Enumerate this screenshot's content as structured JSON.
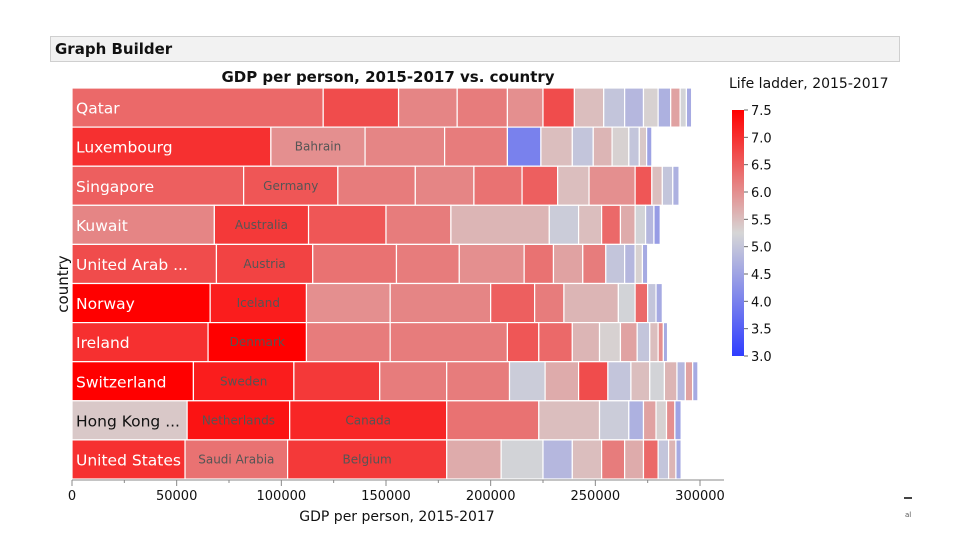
{
  "app": {
    "title": "Graph Builder"
  },
  "corner_note": "al",
  "chart_data": {
    "type": "bar",
    "subtype": "stacked-horizontal-treemap",
    "title": "GDP per person, 2015-2017 vs. country",
    "xlabel": "GDP per person, 2015-2017",
    "ylabel": "country",
    "xlim": [
      0,
      300000
    ],
    "xticks": [
      0,
      50000,
      100000,
      150000,
      200000,
      250000,
      300000
    ],
    "xtick_labels": [
      "0",
      "50000",
      "100000",
      "150000",
      "200000",
      "250000",
      "300000"
    ],
    "legend": {
      "title": "Life ladder, 2015-2017",
      "position": "right",
      "min": 3.0,
      "max": 7.5,
      "ticks": [
        7.5,
        7.0,
        6.5,
        6.0,
        5.5,
        5.0,
        4.5,
        4.0,
        3.5,
        3.0
      ],
      "tick_labels": [
        "7.5",
        "7.0",
        "6.5",
        "6.0",
        "5.5",
        "5.0",
        "4.5",
        "4.0",
        "3.5",
        "3.0"
      ],
      "colors": {
        "low": "#2f3dff",
        "mid": "#d6d6d6",
        "high": "#ff0000"
      }
    },
    "rows": [
      {
        "label": "Qatar",
        "segments": [
          {
            "value": 120000,
            "ladder": 6.4
          },
          {
            "value": 36000,
            "ladder": 6.7
          },
          {
            "value": 28000,
            "ladder": 6.1
          },
          {
            "value": 24000,
            "ladder": 6.2
          },
          {
            "value": 17000,
            "ladder": 6.0
          },
          {
            "value": 15000,
            "ladder": 6.7
          },
          {
            "value": 14000,
            "ladder": 5.5
          },
          {
            "value": 10000,
            "ladder": 5.0
          },
          {
            "value": 9000,
            "ladder": 4.8
          },
          {
            "value": 7000,
            "ladder": 5.3
          },
          {
            "value": 6000,
            "ladder": 4.7
          },
          {
            "value": 4500,
            "ladder": 5.8
          },
          {
            "value": 3000,
            "ladder": 5.2
          },
          {
            "value": 2500,
            "ladder": 4.6
          }
        ]
      },
      {
        "label": "Luxembourg",
        "second": "Bahrain",
        "segments": [
          {
            "value": 95000,
            "ladder": 7.0
          },
          {
            "value": 45000,
            "ladder": 6.0
          },
          {
            "value": 38000,
            "ladder": 6.1
          },
          {
            "value": 30000,
            "ladder": 6.2
          },
          {
            "value": 16000,
            "ladder": 4.0
          },
          {
            "value": 15000,
            "ladder": 5.5
          },
          {
            "value": 10000,
            "ladder": 5.0
          },
          {
            "value": 9000,
            "ladder": 5.6
          },
          {
            "value": 8000,
            "ladder": 5.3
          },
          {
            "value": 5000,
            "ladder": 5.0
          },
          {
            "value": 3500,
            "ladder": 5.4
          },
          {
            "value": 2500,
            "ladder": 4.5
          }
        ]
      },
      {
        "label": "Singapore",
        "second": "Germany",
        "segments": [
          {
            "value": 82000,
            "ladder": 6.5
          },
          {
            "value": 45000,
            "ladder": 6.6
          },
          {
            "value": 37000,
            "ladder": 6.2
          },
          {
            "value": 28000,
            "ladder": 6.1
          },
          {
            "value": 23000,
            "ladder": 6.3
          },
          {
            "value": 17000,
            "ladder": 6.5
          },
          {
            "value": 15000,
            "ladder": 5.5
          },
          {
            "value": 22000,
            "ladder": 6.0
          },
          {
            "value": 8000,
            "ladder": 6.6
          },
          {
            "value": 5000,
            "ladder": 5.5
          },
          {
            "value": 5000,
            "ladder": 5.0
          },
          {
            "value": 3000,
            "ladder": 4.7
          }
        ]
      },
      {
        "label": "Kuwait",
        "second": "Australia",
        "segments": [
          {
            "value": 68000,
            "ladder": 6.1
          },
          {
            "value": 45000,
            "ladder": 6.9
          },
          {
            "value": 37000,
            "ladder": 6.6
          },
          {
            "value": 31000,
            "ladder": 6.2
          },
          {
            "value": 47000,
            "ladder": 5.6
          },
          {
            "value": 14000,
            "ladder": 5.1
          },
          {
            "value": 11000,
            "ladder": 5.5
          },
          {
            "value": 9000,
            "ladder": 6.4
          },
          {
            "value": 7000,
            "ladder": 5.7
          },
          {
            "value": 5000,
            "ladder": 5.2
          },
          {
            "value": 4000,
            "ladder": 4.8
          },
          {
            "value": 3000,
            "ladder": 4.4
          }
        ]
      },
      {
        "label": "United Arab ...",
        "second": "Austria",
        "segments": [
          {
            "value": 69000,
            "ladder": 6.7
          },
          {
            "value": 46000,
            "ladder": 6.8
          },
          {
            "value": 40000,
            "ladder": 6.3
          },
          {
            "value": 30000,
            "ladder": 6.2
          },
          {
            "value": 31000,
            "ladder": 6.0
          },
          {
            "value": 14000,
            "ladder": 6.3
          },
          {
            "value": 14000,
            "ladder": 5.8
          },
          {
            "value": 11000,
            "ladder": 6.2
          },
          {
            "value": 9000,
            "ladder": 5.0
          },
          {
            "value": 5000,
            "ladder": 4.8
          },
          {
            "value": 3500,
            "ladder": 5.3
          },
          {
            "value": 2500,
            "ladder": 4.6
          }
        ]
      },
      {
        "label": "Norway",
        "second": "Iceland",
        "segments": [
          {
            "value": 66000,
            "ladder": 7.5
          },
          {
            "value": 46000,
            "ladder": 7.2
          },
          {
            "value": 40000,
            "ladder": 6.0
          },
          {
            "value": 48000,
            "ladder": 6.1
          },
          {
            "value": 21000,
            "ladder": 6.5
          },
          {
            "value": 14000,
            "ladder": 6.2
          },
          {
            "value": 26000,
            "ladder": 5.6
          },
          {
            "value": 8000,
            "ladder": 5.2
          },
          {
            "value": 6000,
            "ladder": 6.4
          },
          {
            "value": 4000,
            "ladder": 5.0
          },
          {
            "value": 3000,
            "ladder": 4.6
          }
        ]
      },
      {
        "label": "Ireland",
        "second": "Denmark",
        "segments": [
          {
            "value": 65000,
            "ladder": 7.0
          },
          {
            "value": 47000,
            "ladder": 7.5
          },
          {
            "value": 40000,
            "ladder": 6.2
          },
          {
            "value": 56000,
            "ladder": 6.2
          },
          {
            "value": 15000,
            "ladder": 6.6
          },
          {
            "value": 16000,
            "ladder": 6.4
          },
          {
            "value": 13000,
            "ladder": 5.6
          },
          {
            "value": 10000,
            "ladder": 5.3
          },
          {
            "value": 8000,
            "ladder": 5.8
          },
          {
            "value": 6000,
            "ladder": 5.0
          },
          {
            "value": 4000,
            "ladder": 5.5
          },
          {
            "value": 2500,
            "ladder": 6.0
          },
          {
            "value": 2000,
            "ladder": 4.6
          }
        ]
      },
      {
        "label": "Switzerland",
        "second": "Sweden",
        "segments": [
          {
            "value": 58000,
            "ladder": 7.5
          },
          {
            "value": 48000,
            "ladder": 7.2
          },
          {
            "value": 41000,
            "ladder": 6.9
          },
          {
            "value": 32000,
            "ladder": 6.2
          },
          {
            "value": 30000,
            "ladder": 6.2
          },
          {
            "value": 17000,
            "ladder": 5.1
          },
          {
            "value": 16000,
            "ladder": 5.7
          },
          {
            "value": 14000,
            "ladder": 6.7
          },
          {
            "value": 11000,
            "ladder": 5.0
          },
          {
            "value": 9000,
            "ladder": 5.5
          },
          {
            "value": 7000,
            "ladder": 5.2
          },
          {
            "value": 6000,
            "ladder": 5.6
          },
          {
            "value": 4000,
            "ladder": 4.8
          },
          {
            "value": 3500,
            "ladder": 5.8
          },
          {
            "value": 2500,
            "ladder": 4.6
          }
        ]
      },
      {
        "label": "Hong Kong ...",
        "second": "Netherlands",
        "third": "Canada",
        "segments": [
          {
            "value": 55000,
            "ladder": 5.4
          },
          {
            "value": 49000,
            "ladder": 7.3
          },
          {
            "value": 75000,
            "ladder": 7.1
          },
          {
            "value": 44000,
            "ladder": 6.3
          },
          {
            "value": 29000,
            "ladder": 5.5
          },
          {
            "value": 14000,
            "ladder": 5.1
          },
          {
            "value": 7000,
            "ladder": 4.7
          },
          {
            "value": 6000,
            "ladder": 5.8
          },
          {
            "value": 5000,
            "ladder": 5.3
          },
          {
            "value": 4000,
            "ladder": 6.0
          },
          {
            "value": 3000,
            "ladder": 4.5
          }
        ]
      },
      {
        "label": "United States",
        "second": "Saudi Arabia",
        "third": "Belgium",
        "segments": [
          {
            "value": 54000,
            "ladder": 7.0
          },
          {
            "value": 49000,
            "ladder": 6.3
          },
          {
            "value": 76000,
            "ladder": 6.9
          },
          {
            "value": 26000,
            "ladder": 5.7
          },
          {
            "value": 20000,
            "ladder": 5.2
          },
          {
            "value": 14000,
            "ladder": 4.8
          },
          {
            "value": 14000,
            "ladder": 5.5
          },
          {
            "value": 11000,
            "ladder": 6.2
          },
          {
            "value": 9000,
            "ladder": 5.7
          },
          {
            "value": 7000,
            "ladder": 6.4
          },
          {
            "value": 5000,
            "ladder": 5.0
          },
          {
            "value": 3500,
            "ladder": 5.6
          },
          {
            "value": 2500,
            "ladder": 4.6
          }
        ]
      }
    ]
  }
}
